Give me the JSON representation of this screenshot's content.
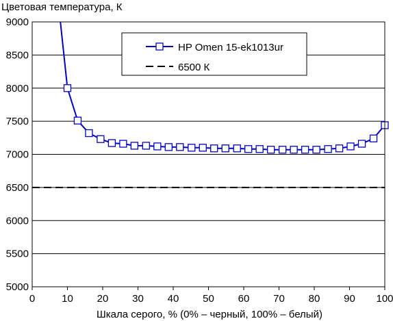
{
  "chart_data": {
    "type": "line",
    "title": "",
    "ylabel": "Цветовая температура, К",
    "xlabel": "Шкала серого, % (0% – черный, 100% – белый)",
    "xlim": [
      0,
      100
    ],
    "ylim": [
      5000,
      9000
    ],
    "x_ticks": [
      0,
      10,
      20,
      30,
      40,
      50,
      60,
      70,
      80,
      90,
      100
    ],
    "y_ticks": [
      5000,
      5500,
      6000,
      6500,
      7000,
      7500,
      8000,
      8500,
      9000
    ],
    "grid": "horizontal",
    "legend_position": "top-center",
    "series": [
      {
        "name": "HP Omen 15-ek1013ur",
        "color": "#0000c8",
        "marker": "square",
        "x": [
          10,
          12.9,
          16.1,
          19.4,
          22.6,
          25.8,
          29,
          32.3,
          35.5,
          38.7,
          41.9,
          45.2,
          48.4,
          51.6,
          54.8,
          58.1,
          61.3,
          64.5,
          67.7,
          71,
          74.2,
          77.4,
          80.6,
          83.9,
          87.1,
          90.3,
          93.5,
          96.8,
          100
        ],
        "y": [
          8000,
          7510,
          7320,
          7230,
          7170,
          7160,
          7130,
          7130,
          7120,
          7110,
          7110,
          7100,
          7100,
          7090,
          7090,
          7090,
          7080,
          7080,
          7070,
          7070,
          7070,
          7070,
          7070,
          7080,
          7090,
          7120,
          7160,
          7240,
          7440
        ],
        "offscreen_lead": [
          {
            "x": 8,
            "y": 9000
          }
        ]
      },
      {
        "name": "6500 К",
        "color": "#000000",
        "dash": "dashed",
        "x": [
          0,
          100
        ],
        "y": [
          6500,
          6500
        ]
      }
    ]
  }
}
